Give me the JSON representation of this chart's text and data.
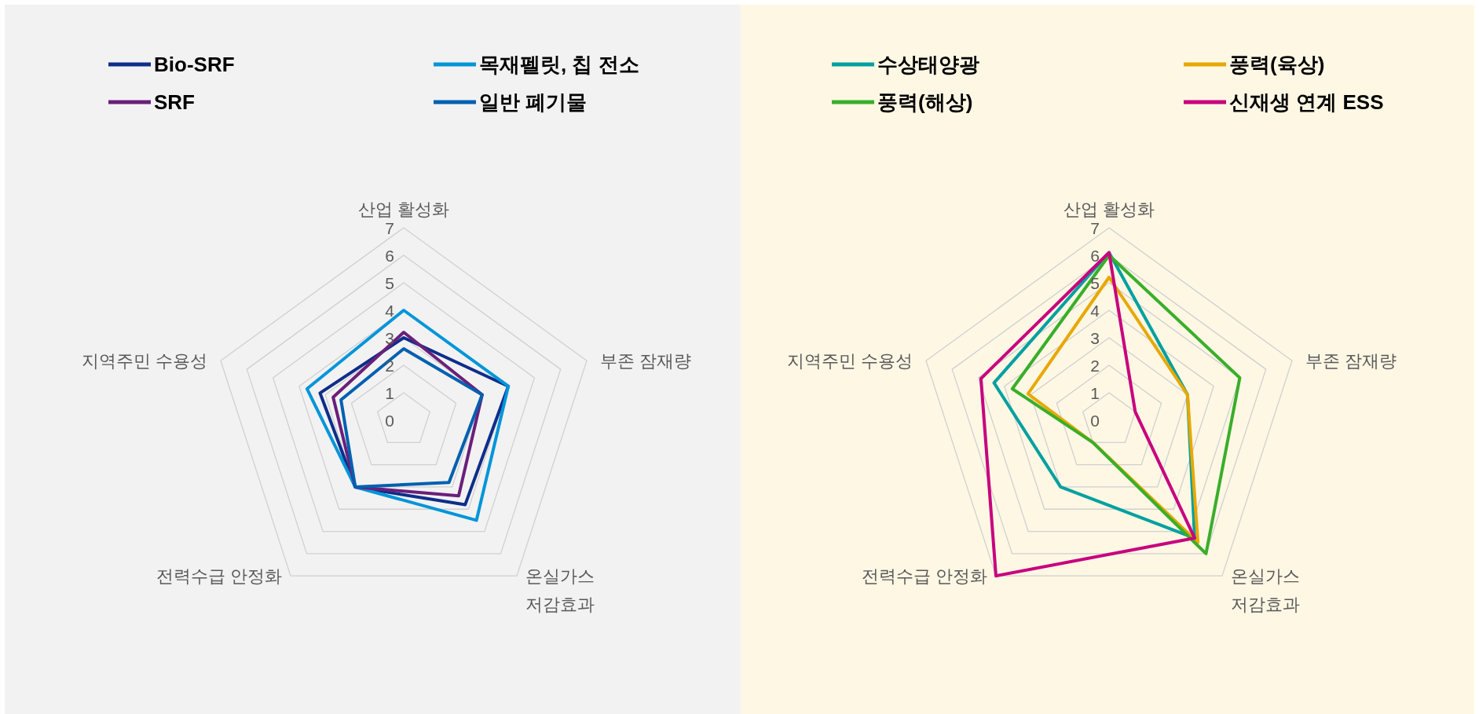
{
  "chart_data": [
    {
      "type": "radar",
      "categories": [
        "산업 활성화",
        "부존 잠재량",
        "온실가스\n저감효과",
        "전력수급 안정화",
        "지역주민 수용성"
      ],
      "ylim": [
        0,
        7
      ],
      "yticks": [
        0,
        1,
        2,
        3,
        4,
        5,
        6,
        7
      ],
      "grid": true,
      "legend": "top",
      "series": [
        {
          "name": "Bio-SRF",
          "color": "#0d2e8a",
          "values": [
            3.0,
            4.0,
            3.8,
            3.0,
            3.2
          ]
        },
        {
          "name": "목재펠릿, 칩 전소",
          "color": "#0095d9",
          "values": [
            4.0,
            4.0,
            4.5,
            3.0,
            3.7
          ]
        },
        {
          "name": "SRF",
          "color": "#6a1f7a",
          "values": [
            3.2,
            3.0,
            3.4,
            3.0,
            2.7
          ]
        },
        {
          "name": "일반 폐기물",
          "color": "#0060b0",
          "values": [
            2.6,
            3.0,
            2.8,
            3.0,
            2.4
          ]
        }
      ]
    },
    {
      "type": "radar",
      "categories": [
        "산업 활성화",
        "부존 잠재량",
        "온실가스\n저감효과",
        "전력수급 안정화",
        "지역주민 수용성"
      ],
      "ylim": [
        0,
        7
      ],
      "yticks": [
        0,
        1,
        2,
        3,
        4,
        5,
        6,
        7
      ],
      "grid": true,
      "legend": "top",
      "series": [
        {
          "name": "수상태양광",
          "color": "#00a0a0",
          "values": [
            6.1,
            3.0,
            5.3,
            3.0,
            4.4
          ]
        },
        {
          "name": "풍력(육상)",
          "color": "#e8a800",
          "values": [
            5.2,
            3.0,
            5.5,
            1.0,
            3.1
          ]
        },
        {
          "name": "풍력(해상)",
          "color": "#3aae2a",
          "values": [
            6.0,
            5.0,
            6.0,
            1.0,
            3.7
          ]
        },
        {
          "name": "신재생 연계 ESS",
          "color": "#c8007e",
          "values": [
            6.1,
            1.0,
            5.3,
            7.0,
            4.9
          ]
        }
      ]
    }
  ]
}
